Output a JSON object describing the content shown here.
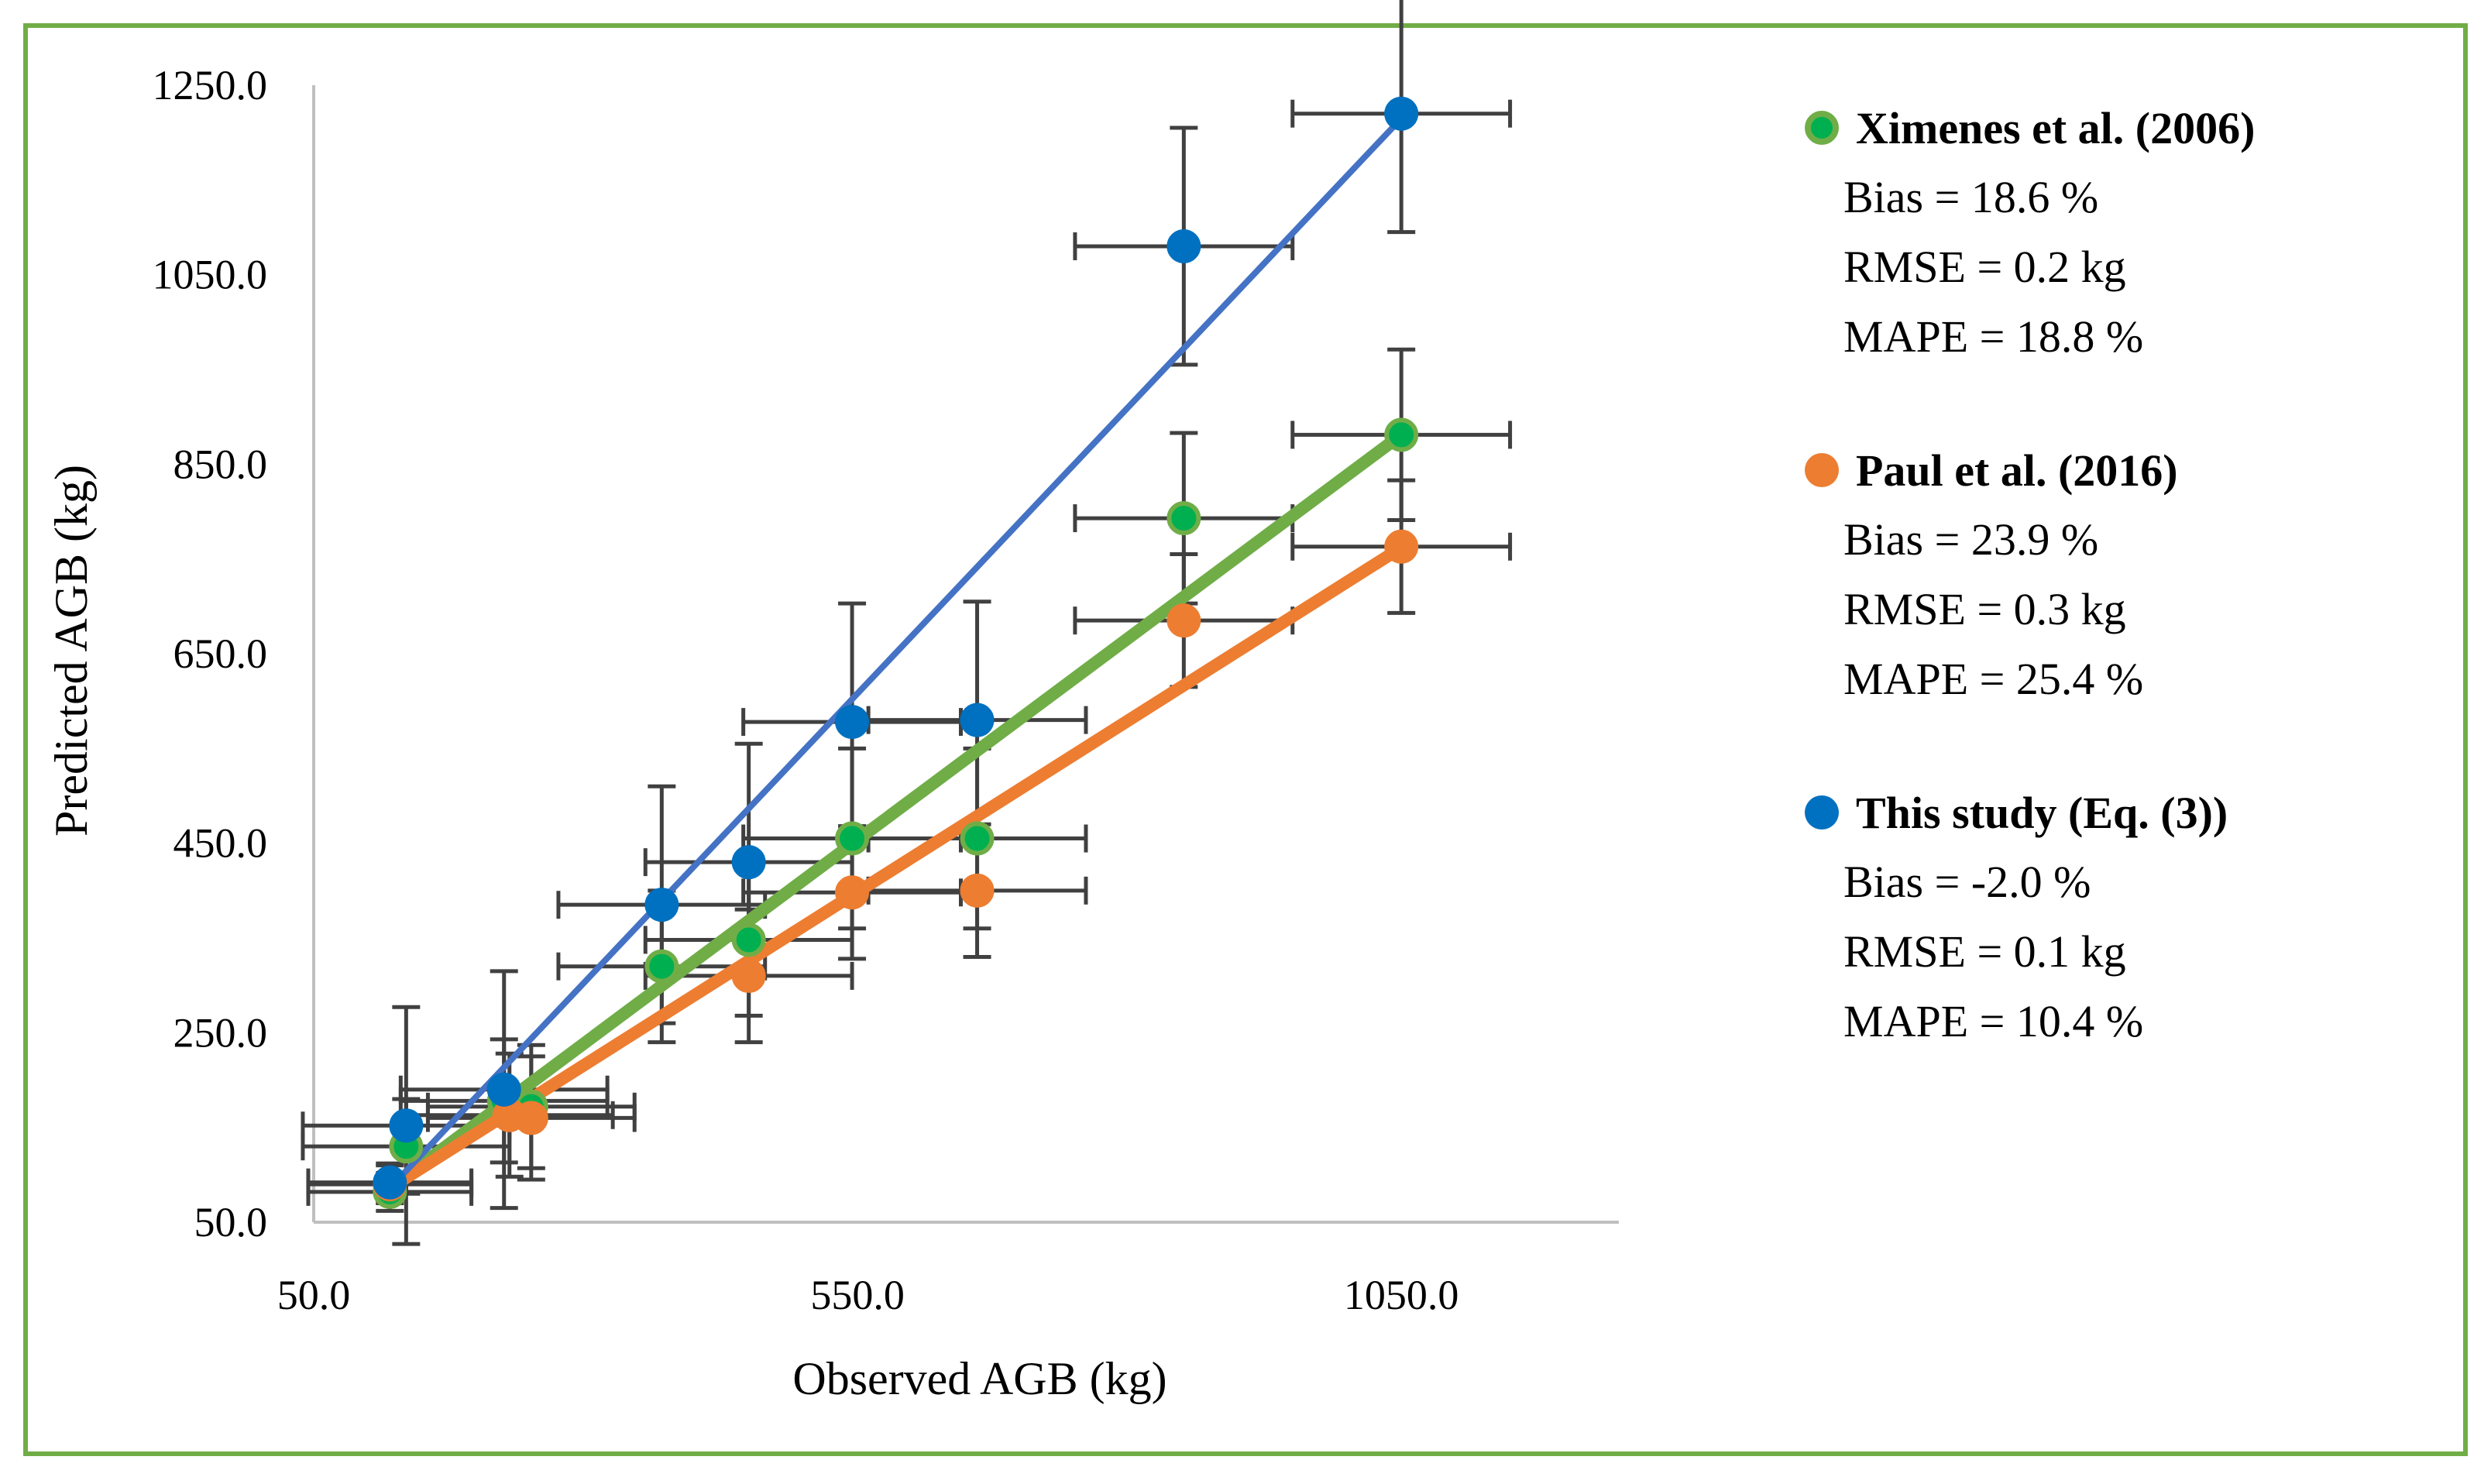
{
  "chart_data": {
    "type": "scatter",
    "xlabel": "Observed AGB (kg)",
    "ylabel": "Predicted AGB (kg)",
    "xlim": [
      50.0,
      1250.0
    ],
    "ylim": [
      50.0,
      1250.0
    ],
    "x_ticks": [
      "50.0",
      "550.0",
      "1050.0"
    ],
    "y_ticks": [
      "50.0",
      "250.0",
      "450.0",
      "650.0",
      "850.0",
      "1050.0",
      "1250.0"
    ],
    "grid": false,
    "legend_position": "right",
    "series": [
      {
        "name": "Ximenes et al. (2006)",
        "color": "#00b050",
        "marker_border": "#70ad47",
        "fit_color": "#70ad47",
        "fit_line": [
          [
            120,
            86
          ],
          [
            1050,
            881
          ]
        ],
        "points": [
          {
            "x": 120,
            "y": 82,
            "xerr": 75,
            "yerr": 20
          },
          {
            "x": 135,
            "y": 130,
            "xerr": 95,
            "yerr": 50
          },
          {
            "x": 225,
            "y": 178,
            "xerr": 95,
            "yerr": 65
          },
          {
            "x": 250,
            "y": 172,
            "xerr": 95,
            "yerr": 65
          },
          {
            "x": 370,
            "y": 320,
            "xerr": 95,
            "yerr": 80
          },
          {
            "x": 450,
            "y": 348,
            "xerr": 95,
            "yerr": 80
          },
          {
            "x": 545,
            "y": 455,
            "xerr": 100,
            "yerr": 95
          },
          {
            "x": 660,
            "y": 455,
            "xerr": 100,
            "yerr": 95
          },
          {
            "x": 850,
            "y": 793,
            "xerr": 100,
            "yerr": 90
          },
          {
            "x": 1050,
            "y": 881,
            "xerr": 100,
            "yerr": 90
          }
        ]
      },
      {
        "name": "Paul et al. (2016)",
        "color": "#ed7d31",
        "marker_border": "#ed7d31",
        "fit_color": "#ed7d31",
        "fit_line": [
          [
            120,
            86
          ],
          [
            1050,
            762
          ]
        ],
        "points": [
          {
            "x": 120,
            "y": 90,
            "xerr": 75,
            "yerr": 20
          },
          {
            "x": 230,
            "y": 163,
            "xerr": 95,
            "yerr": 65
          },
          {
            "x": 250,
            "y": 160,
            "xerr": 95,
            "yerr": 65
          },
          {
            "x": 450,
            "y": 310,
            "xerr": 95,
            "yerr": 70
          },
          {
            "x": 545,
            "y": 398,
            "xerr": 100,
            "yerr": 70
          },
          {
            "x": 660,
            "y": 400,
            "xerr": 100,
            "yerr": 70
          },
          {
            "x": 850,
            "y": 685,
            "xerr": 100,
            "yerr": 70
          },
          {
            "x": 1050,
            "y": 763,
            "xerr": 100,
            "yerr": 70
          }
        ]
      },
      {
        "name": "This study (Eq. (3))",
        "color": "#0070c0",
        "marker_border": "#0070c0",
        "fit_color": "#4472c4",
        "fit_line": [
          [
            120,
            86
          ],
          [
            1050,
            1215
          ]
        ],
        "points": [
          {
            "x": 120,
            "y": 92,
            "xerr": 75,
            "yerr": 20
          },
          {
            "x": 135,
            "y": 152,
            "xerr": 95,
            "yerr": 125
          },
          {
            "x": 225,
            "y": 190,
            "xerr": 95,
            "yerr": 125
          },
          {
            "x": 370,
            "y": 385,
            "xerr": 95,
            "yerr": 125
          },
          {
            "x": 450,
            "y": 430,
            "xerr": 95,
            "yerr": 125
          },
          {
            "x": 545,
            "y": 578,
            "xerr": 100,
            "yerr": 125
          },
          {
            "x": 660,
            "y": 580,
            "xerr": 100,
            "yerr": 125
          },
          {
            "x": 850,
            "y": 1080,
            "xerr": 100,
            "yerr": 125
          },
          {
            "x": 1050,
            "y": 1220,
            "xerr": 100,
            "yerr": 125
          }
        ]
      }
    ]
  },
  "legend": [
    {
      "name": "Ximenes et al. (2006)",
      "bias": "Bias = 18.6 %",
      "rmse": "RMSE = 0.2 kg",
      "mape": "MAPE = 18.8 %"
    },
    {
      "name": "Paul et al. (2016)",
      "bias": "Bias = 23.9 %",
      "rmse": "RMSE = 0.3 kg",
      "mape": "MAPE = 25.4 %"
    },
    {
      "name": "This study (Eq. (3))",
      "bias": "Bias = -2.0 %",
      "rmse": "RMSE = 0.1 kg",
      "mape": "MAPE = 10.4 %"
    }
  ]
}
